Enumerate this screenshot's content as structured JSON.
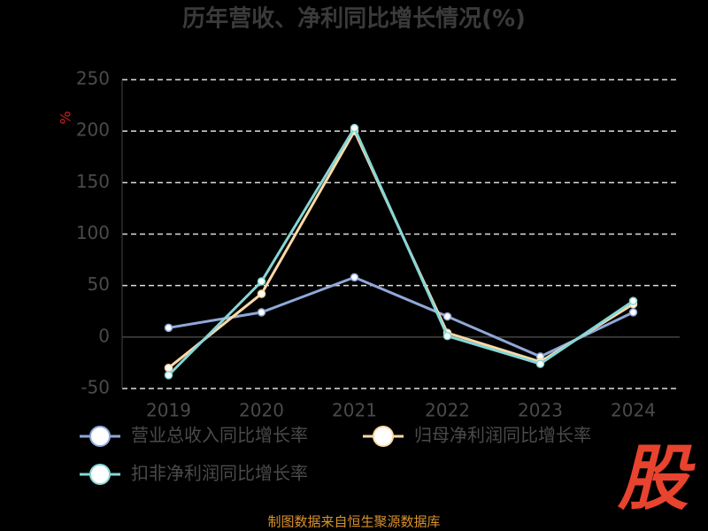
{
  "chart_data": {
    "type": "line",
    "title": "历年营收、净利同比增长情况(%)",
    "y_label": "%",
    "categories": [
      "2019",
      "2020",
      "2021",
      "2022",
      "2023",
      "2024"
    ],
    "series": [
      {
        "name": "营业总收入同比增长率",
        "color": "#8fa8d8",
        "values": [
          9,
          24,
          58,
          20,
          -19,
          24
        ]
      },
      {
        "name": "归母净利润同比增长率",
        "color": "#ffd9a6",
        "values": [
          -30,
          42,
          200,
          4,
          -24,
          32
        ]
      },
      {
        "name": "扣非净利润同比增长率",
        "color": "#86d6d6",
        "values": [
          -37,
          54,
          203,
          1,
          -26,
          35
        ]
      }
    ],
    "ylim": [
      -50,
      250
    ],
    "yticks": [
      -50,
      0,
      50,
      100,
      150,
      200,
      250
    ],
    "grid": true,
    "source": "制图数据来自恒生聚源数据库",
    "logo": "股"
  }
}
